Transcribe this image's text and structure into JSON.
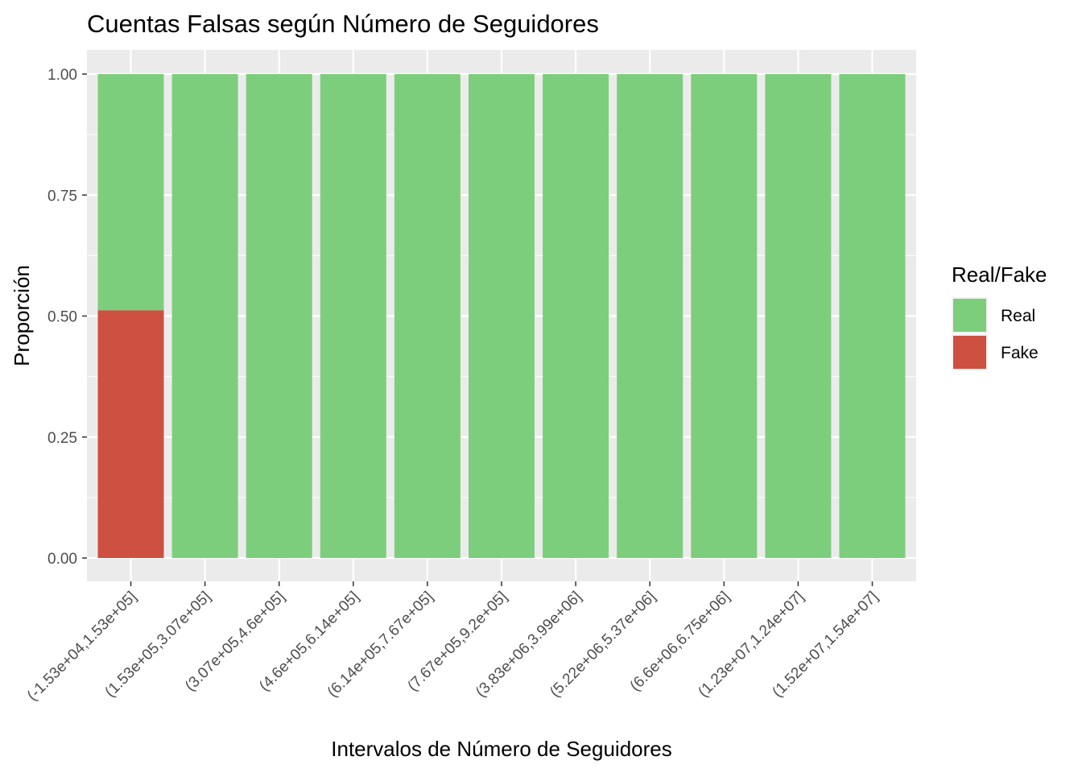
{
  "chart_data": {
    "type": "bar",
    "stacked": true,
    "title": "Cuentas Falsas según Número de Seguidores",
    "xlabel": "Intervalos de Número de Seguidores",
    "ylabel": "Proporción",
    "ylim": [
      0,
      1
    ],
    "yticks": [
      0,
      0.25,
      0.5,
      0.75,
      1
    ],
    "ytick_labels": [
      "0.00",
      "0.25",
      "0.50",
      "0.75",
      "1.00"
    ],
    "grid": true,
    "categories": [
      "(-1.53e+04,1.53e+05]",
      "(1.53e+05,3.07e+05]",
      "(3.07e+05,4.6e+05]",
      "(4.6e+05,6.14e+05]",
      "(6.14e+05,7.67e+05]",
      "(7.67e+05,9.2e+05]",
      "(3.83e+06,3.99e+06]",
      "(5.22e+06,5.37e+06]",
      "(6.6e+06,6.75e+06]",
      "(1.23e+07,1.24e+07]",
      "(1.52e+07,1.54e+07]"
    ],
    "legend": {
      "title": "Real/Fake",
      "position": "right"
    },
    "series": [
      {
        "name": "Fake",
        "color": "#CD5040",
        "values": [
          0.512,
          0,
          0,
          0,
          0,
          0,
          0,
          0,
          0,
          0,
          0
        ]
      },
      {
        "name": "Real",
        "color": "#7DCE7C",
        "values": [
          0.488,
          1,
          1,
          1,
          1,
          1,
          1,
          1,
          1,
          1,
          1
        ]
      }
    ],
    "legend_order": [
      "Real",
      "Fake"
    ]
  }
}
